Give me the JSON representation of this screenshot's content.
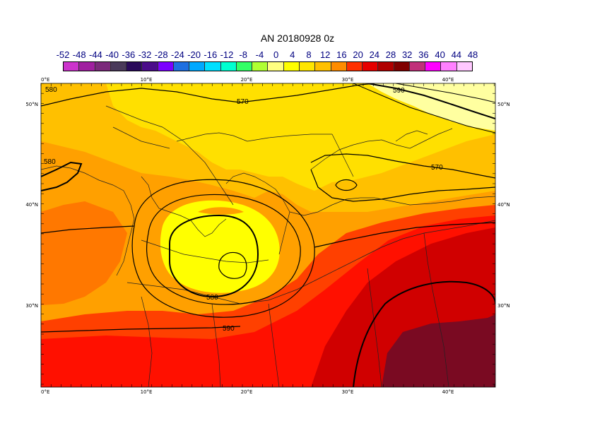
{
  "title": "AN  20180928 0z",
  "colorbar": {
    "tick_labels": [
      "-52",
      "-48",
      "-44",
      "-40",
      "-36",
      "-32",
      "-28",
      "-24",
      "-20",
      "-16",
      "-12",
      "-8",
      "-4",
      "0",
      "4",
      "8",
      "12",
      "16",
      "20",
      "24",
      "28",
      "32",
      "36",
      "40",
      "44",
      "48"
    ],
    "colors": [
      "#cc33cc",
      "#a020a0",
      "#7b2a7b",
      "#4a3a5a",
      "#2a0a5a",
      "#4b0c8a",
      "#7b00ff",
      "#1f6fe0",
      "#00a8ff",
      "#00e0ff",
      "#00ffd0",
      "#33ff66",
      "#b0ff33",
      "#ffff80",
      "#ffff00",
      "#ffe600",
      "#ffc000",
      "#ff8c00",
      "#ff3000",
      "#e60000",
      "#b00000",
      "#800000",
      "#c0307a",
      "#ff00ff",
      "#ff80ff",
      "#ffc8ff"
    ]
  },
  "map": {
    "lon_labels": [
      "0°E",
      "10°E",
      "20°E",
      "30°E",
      "40°E"
    ],
    "lat_labels": [
      "50°N",
      "40°N",
      "30°N"
    ],
    "contour_labels": [
      "580",
      "570",
      "590",
      "580",
      "570",
      "580",
      "590"
    ],
    "fill_colors": {
      "very_light": "#ffffa0",
      "light": "#ffff00",
      "yellow_orange": "#ffe000",
      "orange_light": "#ffc000",
      "orange": "#ffa000",
      "dark_orange": "#ff7800",
      "red_orange": "#ff4000",
      "red": "#ff1000",
      "dark_red": "#d00000",
      "maroon": "#7a0a22"
    }
  }
}
